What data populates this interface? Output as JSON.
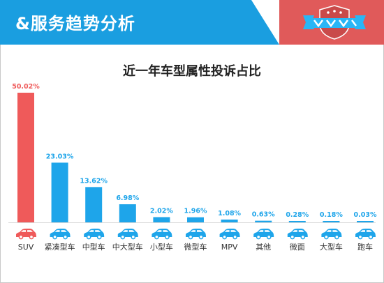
{
  "header": {
    "title": "&服务趋势分析",
    "colors": {
      "blue": "#1a9ee0",
      "red": "#e05a5a"
    }
  },
  "chart_data": {
    "type": "bar",
    "title": "近一年车型属性投诉占比",
    "categories": [
      "SUV",
      "紧凑型车",
      "中型车",
      "中大型车",
      "小型车",
      "微型车",
      "MPV",
      "其他",
      "微面",
      "大型车",
      "跑车"
    ],
    "values": [
      50.02,
      23.03,
      13.62,
      6.98,
      2.02,
      1.96,
      1.08,
      0.63,
      0.28,
      0.18,
      0.03
    ],
    "value_labels": [
      "50.02%",
      "23.03%",
      "13.62%",
      "6.98%",
      "2.02%",
      "1.96%",
      "1.08%",
      "0.63%",
      "0.28%",
      "0.18%",
      "0.03%"
    ],
    "unit": "%",
    "ylim": [
      0,
      50.02
    ],
    "grid": false,
    "highlight_color": "#ef5a5a",
    "bar_color": "#1ea5ea",
    "icon": "car-icon"
  }
}
